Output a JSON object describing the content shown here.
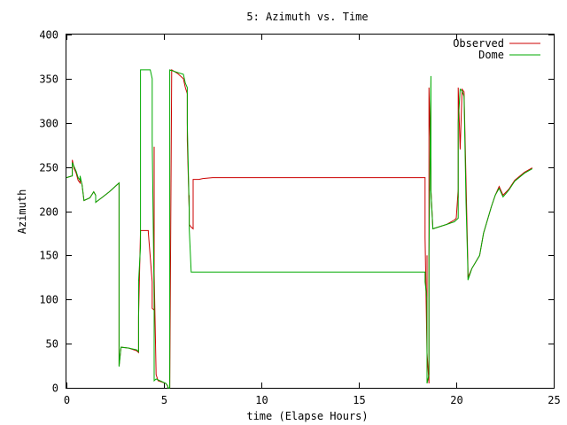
{
  "chart_data": {
    "type": "line",
    "title": "5: Azimuth vs. Time",
    "xlabel": "time (Elapse Hours)",
    "ylabel": "Azimuth",
    "xlim": [
      0,
      25
    ],
    "ylim": [
      0,
      400
    ],
    "xticks": [
      0,
      5,
      10,
      15,
      20,
      25
    ],
    "yticks": [
      0,
      50,
      100,
      150,
      200,
      250,
      300,
      350,
      400
    ],
    "grid": false,
    "legend": "top-right",
    "series": [
      {
        "name": "Observed",
        "color": "#cc0000",
        "points": [
          [
            0,
            238
          ],
          [
            0.3,
            240
          ],
          [
            0.3,
            258
          ],
          [
            0.4,
            248
          ],
          [
            0.5,
            243
          ],
          [
            0.6,
            235
          ],
          [
            0.7,
            232
          ],
          [
            0.7,
            238
          ],
          [
            0.8,
            230
          ],
          [
            0.9,
            212
          ],
          [
            1.2,
            215
          ],
          [
            1.4,
            222
          ],
          [
            1.5,
            218
          ],
          [
            1.5,
            210
          ],
          [
            1.8,
            215
          ],
          [
            2.2,
            222
          ],
          [
            2.6,
            230
          ],
          [
            2.7,
            232
          ],
          [
            2.7,
            140
          ],
          [
            2.7,
            128
          ],
          [
            2.7,
            25
          ],
          [
            2.8,
            46
          ],
          [
            3.2,
            45
          ],
          [
            3.6,
            42
          ],
          [
            3.7,
            40
          ],
          [
            3.7,
            80
          ],
          [
            3.8,
            178
          ],
          [
            4.2,
            178
          ],
          [
            4.2,
            176
          ],
          [
            4.4,
            120
          ],
          [
            4.4,
            90
          ],
          [
            4.5,
            88
          ],
          [
            4.5,
            273
          ],
          [
            4.5,
            130
          ],
          [
            4.6,
            15
          ],
          [
            4.7,
            8
          ],
          [
            5.1,
            5
          ],
          [
            5.2,
            2
          ],
          [
            5.2,
            0
          ],
          [
            5.3,
            0
          ],
          [
            5.4,
            360
          ],
          [
            5.7,
            356
          ],
          [
            6.0,
            350
          ],
          [
            6.1,
            340
          ],
          [
            6.2,
            333
          ],
          [
            6.2,
            280
          ],
          [
            6.3,
            200
          ],
          [
            6.3,
            218
          ],
          [
            6.3,
            185
          ],
          [
            6.4,
            182
          ],
          [
            6.5,
            180
          ],
          [
            6.5,
            236
          ],
          [
            6.8,
            236
          ],
          [
            7.0,
            237
          ],
          [
            7.5,
            238
          ],
          [
            18.4,
            238
          ],
          [
            18.4,
            170
          ],
          [
            18.5,
            38
          ],
          [
            18.5,
            150
          ],
          [
            18.5,
            40
          ],
          [
            18.6,
            5
          ],
          [
            18.6,
            340
          ],
          [
            18.7,
            245
          ],
          [
            18.7,
            224
          ],
          [
            18.8,
            180
          ],
          [
            19.5,
            185
          ],
          [
            19.9,
            190
          ],
          [
            20.0,
            192
          ],
          [
            20.1,
            225
          ],
          [
            20.1,
            215
          ],
          [
            20.1,
            340
          ],
          [
            20.2,
            270
          ],
          [
            20.3,
            338
          ],
          [
            20.4,
            335
          ],
          [
            20.6,
            135
          ],
          [
            20.6,
            125
          ],
          [
            20.8,
            135
          ],
          [
            21.2,
            150
          ],
          [
            21.4,
            175
          ],
          [
            21.6,
            190
          ],
          [
            21.8,
            205
          ],
          [
            22.0,
            218
          ],
          [
            22.2,
            228
          ],
          [
            22.4,
            218
          ],
          [
            22.7,
            225
          ],
          [
            23.0,
            235
          ],
          [
            23.5,
            244
          ],
          [
            23.9,
            249
          ]
        ]
      },
      {
        "name": "Dome",
        "color": "#00aa00",
        "points": [
          [
            0,
            238
          ],
          [
            0.3,
            240
          ],
          [
            0.3,
            255
          ],
          [
            0.4,
            250
          ],
          [
            0.5,
            245
          ],
          [
            0.6,
            238
          ],
          [
            0.7,
            235
          ],
          [
            0.7,
            240
          ],
          [
            0.8,
            230
          ],
          [
            0.9,
            212
          ],
          [
            1.2,
            215
          ],
          [
            1.4,
            222
          ],
          [
            1.5,
            218
          ],
          [
            1.5,
            210
          ],
          [
            1.8,
            215
          ],
          [
            2.2,
            222
          ],
          [
            2.6,
            230
          ],
          [
            2.7,
            232
          ],
          [
            2.7,
            24
          ],
          [
            2.8,
            46
          ],
          [
            3.2,
            45
          ],
          [
            3.6,
            43
          ],
          [
            3.7,
            41
          ],
          [
            3.7,
            120
          ],
          [
            3.8,
            160
          ],
          [
            3.8,
            360
          ],
          [
            4.3,
            360
          ],
          [
            4.4,
            350
          ],
          [
            4.4,
            280
          ],
          [
            4.5,
            100
          ],
          [
            4.5,
            8
          ],
          [
            4.6,
            10
          ],
          [
            5.1,
            5
          ],
          [
            5.2,
            2
          ],
          [
            5.2,
            0
          ],
          [
            5.3,
            0
          ],
          [
            5.3,
            360
          ],
          [
            5.7,
            357
          ],
          [
            6.0,
            355
          ],
          [
            6.1,
            345
          ],
          [
            6.2,
            340
          ],
          [
            6.2,
            300
          ],
          [
            6.3,
            200
          ],
          [
            6.3,
            180
          ],
          [
            6.4,
            131
          ],
          [
            18.4,
            131
          ],
          [
            18.4,
            120
          ],
          [
            18.5,
            100
          ],
          [
            18.5,
            5
          ],
          [
            18.6,
            15
          ],
          [
            18.6,
            150
          ],
          [
            18.7,
            353
          ],
          [
            18.7,
            224
          ],
          [
            18.8,
            180
          ],
          [
            19.5,
            185
          ],
          [
            19.9,
            188
          ],
          [
            20.0,
            190
          ],
          [
            20.1,
            192
          ],
          [
            20.1,
            300
          ],
          [
            20.2,
            338
          ],
          [
            20.3,
            336
          ],
          [
            20.4,
            330
          ],
          [
            20.5,
            210
          ],
          [
            20.6,
            130
          ],
          [
            20.6,
            122
          ],
          [
            20.8,
            135
          ],
          [
            21.2,
            150
          ],
          [
            21.4,
            175
          ],
          [
            21.6,
            190
          ],
          [
            21.8,
            205
          ],
          [
            22.0,
            218
          ],
          [
            22.2,
            226
          ],
          [
            22.4,
            216
          ],
          [
            22.7,
            224
          ],
          [
            23.0,
            234
          ],
          [
            23.5,
            243
          ],
          [
            23.9,
            248
          ]
        ]
      }
    ]
  }
}
